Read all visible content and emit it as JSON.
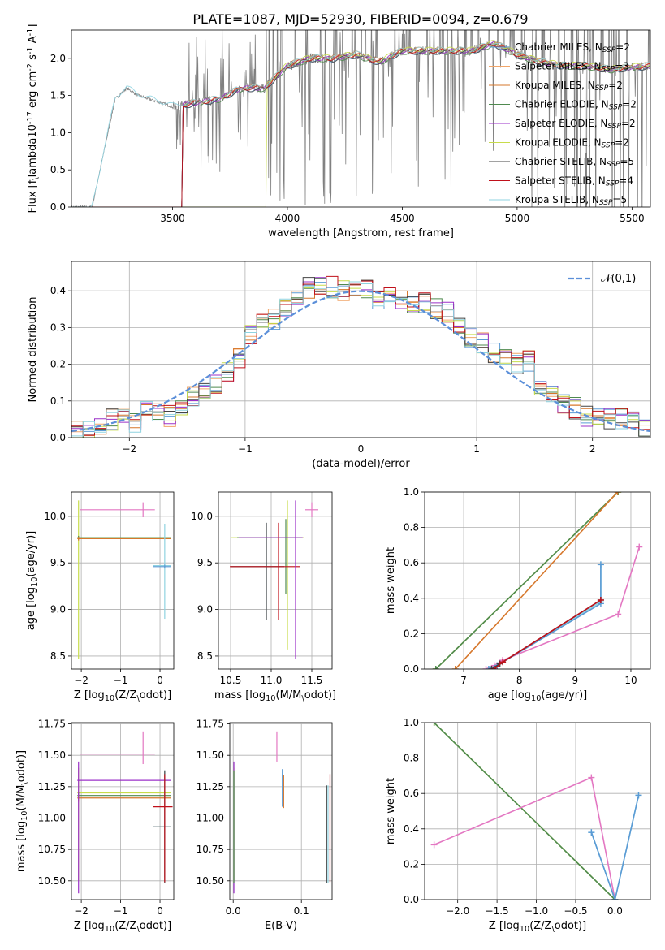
{
  "figure_title": "PLATE=1087, MJD=52930, FIBERID=0094, z=0.679",
  "legend_series": [
    {
      "name": "Chabrier MILES, N$_{SSP}$=2",
      "base": "Chabrier MILES, N",
      "sub": "SSP",
      "tail": "=2",
      "color": "#5b9bd5"
    },
    {
      "name": "Salpeter MILES, N$_{SSP}$=3",
      "base": "Salpeter MILES, N",
      "sub": "SSP",
      "tail": "=3",
      "color": "#f1a66a"
    },
    {
      "name": "Kroupa MILES, N$_{SSP}$=2",
      "base": "Kroupa MILES, N",
      "sub": "SSP",
      "tail": "=2",
      "color": "#d6772b"
    },
    {
      "name": "Chabrier ELODIE, N$_{SSP}$=2",
      "base": "Chabrier ELODIE, N",
      "sub": "SSP",
      "tail": "=2",
      "color": "#4f8a4f"
    },
    {
      "name": "Salpeter ELODIE, N$_{SSP}$=2",
      "base": "Salpeter ELODIE, N",
      "sub": "SSP",
      "tail": "=2",
      "color": "#9b30c8"
    },
    {
      "name": "Kroupa ELODIE, N$_{SSP}$=2",
      "base": "Kroupa ELODIE, N",
      "sub": "SSP",
      "tail": "=2",
      "color": "#c8dc4b"
    },
    {
      "name": "Chabrier STELIB, N$_{SSP}$=5",
      "base": "Chabrier STELIB, N",
      "sub": "SSP",
      "tail": "=5",
      "color": "#444444"
    },
    {
      "name": "Salpeter STELIB, N$_{SSP}$=4",
      "base": "Salpeter STELIB, N",
      "sub": "SSP",
      "tail": "=4",
      "color": "#c0101a"
    },
    {
      "name": "Kroupa STELIB, N$_{SSP}$=5",
      "base": "Kroupa STELIB, N",
      "sub": "SSP",
      "tail": "=5",
      "color": "#8fd3e0"
    }
  ],
  "chart_data": [
    {
      "id": "spectrum",
      "type": "line",
      "xlabel": "wavelength [Angstrom, rest frame]",
      "ylabel": "Flux [f$_\\lambda$10$^{-17}$ erg cm$^{-2}$ s$^{-1}$ A$^{-1}$]",
      "xlim": [
        3060,
        5580
      ],
      "ylim": [
        0,
        2.38
      ],
      "xticks": [
        3500,
        4000,
        4500,
        5000,
        5500
      ],
      "yticks": [
        0.0,
        0.5,
        1.0,
        1.5,
        2.0
      ],
      "grid": false,
      "legend": "right",
      "data_series": {
        "name": "data",
        "color": "#808080",
        "x": [
          3060,
          3150,
          3250,
          3300,
          3350,
          3400,
          3500,
          3600,
          3700,
          3800,
          3900,
          4000,
          4100,
          4200,
          4300,
          4400,
          4500,
          4600,
          4700,
          4800,
          4900,
          5000,
          5100,
          5200,
          5300,
          5400,
          5580
        ],
        "y": [
          0,
          0,
          1.45,
          1.6,
          1.5,
          1.45,
          1.35,
          1.4,
          1.45,
          1.6,
          1.6,
          1.9,
          2.0,
          2.0,
          2.05,
          1.95,
          2.1,
          2.1,
          2.1,
          2.1,
          2.2,
          2.05,
          1.95,
          1.9,
          1.9,
          1.85,
          1.9
        ]
      },
      "model_series": {
        "x": [
          3060,
          3150,
          3250,
          3300,
          3350,
          3400,
          3500,
          3600,
          3700,
          3800,
          3900,
          4000,
          4100,
          4200,
          4300,
          4400,
          4500,
          4600,
          4700,
          4800,
          4900,
          5000,
          5100,
          5200,
          5300,
          5400,
          5580
        ],
        "y": [
          0,
          0,
          1.45,
          1.6,
          1.5,
          1.45,
          1.35,
          1.4,
          1.45,
          1.6,
          1.6,
          1.9,
          2.0,
          2.0,
          2.05,
          1.95,
          2.1,
          2.1,
          2.1,
          2.1,
          2.2,
          2.05,
          1.95,
          1.9,
          1.9,
          1.85,
          1.9
        ]
      },
      "model_start_x": [
        3545,
        3545,
        3545,
        3545,
        3545,
        3910,
        3545,
        3545,
        3150
      ]
    },
    {
      "id": "residuals",
      "type": "line",
      "xlabel": "(data-model)/error",
      "ylabel": "Normed distribution",
      "xlim": [
        -2.5,
        2.5
      ],
      "ylim": [
        0,
        0.48
      ],
      "xticks": [
        -2,
        -1,
        0,
        1,
        2
      ],
      "yticks": [
        0.0,
        0.1,
        0.2,
        0.3,
        0.4
      ],
      "grid": true,
      "legend": "top-right",
      "normal_label": "$\\mathcal{N}(0,1)$",
      "normal_color": "#5b8fd9",
      "bin_edges": [
        -2.5,
        -2.4,
        -2.3,
        -2.2,
        -2.1,
        -2.0,
        -1.9,
        -1.8,
        -1.7,
        -1.6,
        -1.5,
        -1.4,
        -1.3,
        -1.2,
        -1.1,
        -1.0,
        -0.9,
        -0.8,
        -0.7,
        -0.6,
        -0.5,
        -0.4,
        -0.3,
        -0.2,
        -0.1,
        0.0,
        0.1,
        0.2,
        0.3,
        0.4,
        0.5,
        0.6,
        0.7,
        0.8,
        0.9,
        1.0,
        1.1,
        1.2,
        1.3,
        1.4,
        1.5,
        1.6,
        1.7,
        1.8,
        1.9,
        2.0,
        2.1,
        2.2,
        2.3,
        2.4,
        2.5
      ],
      "hist_base": [
        0.02,
        0.02,
        0.03,
        0.05,
        0.05,
        0.04,
        0.07,
        0.07,
        0.06,
        0.08,
        0.11,
        0.13,
        0.15,
        0.18,
        0.22,
        0.28,
        0.31,
        0.32,
        0.35,
        0.38,
        0.41,
        0.42,
        0.41,
        0.4,
        0.4,
        0.41,
        0.38,
        0.39,
        0.37,
        0.37,
        0.37,
        0.35,
        0.34,
        0.3,
        0.27,
        0.26,
        0.23,
        0.21,
        0.2,
        0.21,
        0.14,
        0.12,
        0.09,
        0.08,
        0.06,
        0.06,
        0.05,
        0.05,
        0.04,
        0.03
      ]
    },
    {
      "id": "age-vs-Z",
      "type": "scatter",
      "xlabel": "Z [log$_{10}$($Z/Z_\\odot$)]",
      "ylabel": "age  [log$_{10}$($age/yr$)]",
      "xlim": [
        -2.25,
        0.35
      ],
      "ylim": [
        8.36,
        10.26
      ],
      "xticks": [
        -2,
        -1,
        0
      ],
      "yticks": [
        8.5,
        9.0,
        9.5,
        10.0
      ],
      "grid": true,
      "points": [
        {
          "x": -2.07,
          "y": 9.77,
          "xerr": [
            0.03,
            2.35
          ],
          "yerr": [
            1.3,
            0.4
          ],
          "color": "#c8dc4b"
        },
        {
          "x": -2.07,
          "y": 9.77,
          "xerr": [
            0.03,
            2.35
          ],
          "yerr": [
            0.02,
            0.02
          ],
          "color": "#4f8a4f"
        },
        {
          "x": -2.07,
          "y": 9.76,
          "xerr": [
            0.03,
            2.35
          ],
          "yerr": [
            0.02,
            0.02
          ],
          "color": "#d6772b"
        },
        {
          "x": -0.43,
          "y": 10.07,
          "xerr": [
            1.6,
            0.3
          ],
          "yerr": [
            0.08,
            0.08
          ],
          "color": "#e377c2"
        },
        {
          "x": 0.12,
          "y": 9.47,
          "xerr": [
            0.3,
            0.16
          ],
          "yerr": [
            0.57,
            0.45
          ],
          "color": "#8fd3e0"
        },
        {
          "x": 0.12,
          "y": 9.46,
          "xerr": [
            0.3,
            0.16
          ],
          "yerr": [
            0.02,
            0.02
          ],
          "color": "#5b9bd5"
        }
      ]
    },
    {
      "id": "age-vs-mass",
      "type": "scatter",
      "xlabel": "mass [log$_{10}$($M/M_\\odot$)]",
      "ylabel": "",
      "xlim": [
        10.35,
        11.75
      ],
      "ylim": [
        8.36,
        10.26
      ],
      "xticks": [
        10.5,
        11.0,
        11.5
      ],
      "yticks": [
        8.5,
        9.0,
        9.5,
        10.0
      ],
      "grid": true,
      "points": [
        {
          "x": 11.2,
          "y": 9.77,
          "xerr": [
            0.7,
            0.2
          ],
          "yerr": [
            1.2,
            0.4
          ],
          "color": "#c8dc4b"
        },
        {
          "x": 11.18,
          "y": 9.77,
          "xerr": [
            0.6,
            0.2
          ],
          "yerr": [
            0.6,
            0.2
          ],
          "color": "#4f8a4f"
        },
        {
          "x": 10.94,
          "y": 9.46,
          "xerr": [
            0.44,
            0.22
          ],
          "yerr": [
            0.57,
            0.47
          ],
          "color": "#8fd3e0"
        },
        {
          "x": 10.94,
          "y": 9.46,
          "xerr": [
            0.44,
            0.22
          ],
          "yerr": [
            0.57,
            0.47
          ],
          "color": "#444444"
        },
        {
          "x": 11.09,
          "y": 9.46,
          "xerr": [
            0.6,
            0.27
          ],
          "yerr": [
            0.57,
            0.47
          ],
          "color": "#c0101a"
        },
        {
          "x": 11.3,
          "y": 9.77,
          "xerr": [
            0.7,
            0.09
          ],
          "yerr": [
            1.3,
            0.4
          ],
          "color": "#9b30c8"
        },
        {
          "x": 11.5,
          "y": 10.07,
          "xerr": [
            0.08,
            0.08
          ],
          "yerr": [
            0.08,
            0.08
          ],
          "color": "#e377c2"
        }
      ]
    },
    {
      "id": "massweight-vs-age",
      "type": "line",
      "xlabel": "age  [log$_{10}$($age/yr$)]",
      "ylabel": "mass weight",
      "xlim": [
        6.3,
        10.35
      ],
      "ylim": [
        0,
        1
      ],
      "xticks": [
        7,
        8,
        9,
        10
      ],
      "yticks": [
        0.0,
        0.2,
        0.4,
        0.6,
        0.8,
        1.0
      ],
      "grid": true,
      "series": [
        {
          "x": [
            6.5,
            9.77
          ],
          "y": [
            0.0,
            1.0
          ],
          "color": "#c8dc4b"
        },
        {
          "x": [
            6.5,
            9.77
          ],
          "y": [
            0.0,
            1.0
          ],
          "color": "#4f8a4f"
        },
        {
          "x": [
            6.85,
            9.76
          ],
          "y": [
            0.0,
            1.0
          ],
          "color": "#d6772b"
        },
        {
          "x": [
            7.4,
            7.55,
            7.7,
            9.77,
            10.15
          ],
          "y": [
            0.0,
            0.02,
            0.05,
            0.31,
            0.69
          ],
          "color": "#e377c2"
        },
        {
          "x": [
            7.45,
            7.6,
            9.46,
            9.46
          ],
          "y": [
            0.0,
            0.02,
            0.38,
            0.59
          ],
          "color": "#8fd3e0"
        },
        {
          "x": [
            7.45,
            7.6,
            9.46,
            9.46
          ],
          "y": [
            0.0,
            0.02,
            0.37,
            0.59
          ],
          "color": "#5b9bd5"
        },
        {
          "x": [
            7.5,
            7.65,
            9.46
          ],
          "y": [
            0.0,
            0.03,
            0.39
          ],
          "color": "#444444"
        },
        {
          "x": [
            7.55,
            7.7,
            9.46
          ],
          "y": [
            0.0,
            0.04,
            0.39
          ],
          "color": "#c0101a"
        }
      ]
    },
    {
      "id": "mass-vs-Z",
      "type": "scatter",
      "xlabel": "Z [log$_{10}$($Z/Z_\\odot$)]",
      "ylabel": "mass [log$_{10}$($M/M_\\odot$)]",
      "xlim": [
        -2.25,
        0.35
      ],
      "ylim": [
        10.35,
        11.76
      ],
      "xticks": [
        -2,
        -1,
        0
      ],
      "yticks": [
        10.5,
        10.75,
        11.0,
        11.25,
        11.5,
        11.75
      ],
      "grid": true,
      "points": [
        {
          "x": -2.07,
          "y": 11.2,
          "xerr": [
            0.03,
            2.35
          ],
          "yerr": [
            0.7,
            0.2
          ],
          "color": "#c8dc4b"
        },
        {
          "x": -2.07,
          "y": 11.18,
          "xerr": [
            0.03,
            2.35
          ],
          "yerr": [
            0.03,
            0.03
          ],
          "color": "#4f8a4f"
        },
        {
          "x": -2.07,
          "y": 11.16,
          "xerr": [
            0.03,
            2.35
          ],
          "yerr": [
            0.03,
            0.03
          ],
          "color": "#d6772b"
        },
        {
          "x": -2.07,
          "y": 11.3,
          "xerr": [
            0.03,
            2.35
          ],
          "yerr": [
            0.9,
            0.15
          ],
          "color": "#9b30c8"
        },
        {
          "x": -0.43,
          "y": 11.51,
          "xerr": [
            1.6,
            0.3
          ],
          "yerr": [
            0.08,
            0.18
          ],
          "color": "#e377c2"
        },
        {
          "x": 0.12,
          "y": 10.93,
          "xerr": [
            0.3,
            0.16
          ],
          "yerr": [
            0.4,
            0.45
          ],
          "color": "#8fd3e0"
        },
        {
          "x": 0.12,
          "y": 10.93,
          "xerr": [
            0.3,
            0.16
          ],
          "yerr": [
            0.45,
            0.45
          ],
          "color": "#444444"
        },
        {
          "x": 0.12,
          "y": 11.09,
          "xerr": [
            0.3,
            0.2
          ],
          "yerr": [
            0.6,
            0.26
          ],
          "color": "#c0101a"
        }
      ]
    },
    {
      "id": "mass-vs-ebv",
      "type": "scatter",
      "xlabel": "E(B-V)",
      "ylabel": "",
      "xlim": [
        -0.005,
        0.145
      ],
      "ylim": [
        10.35,
        11.76
      ],
      "xticks": [
        0.0,
        0.1
      ],
      "yticks": [
        10.5,
        10.75,
        11.0,
        11.25,
        11.5,
        11.75
      ],
      "grid": true,
      "points": [
        {
          "x": 0.001,
          "y": 11.2,
          "xerr": [
            0,
            0
          ],
          "yerr": [
            0.7,
            0.2
          ],
          "color": "#c8dc4b"
        },
        {
          "x": 0.001,
          "y": 11.3,
          "xerr": [
            0,
            0
          ],
          "yerr": [
            0.9,
            0.15
          ],
          "color": "#9b30c8"
        },
        {
          "x": 0.001,
          "y": 11.18,
          "xerr": [
            0,
            0
          ],
          "yerr": [
            0.7,
            0.2
          ],
          "color": "#4f8a4f"
        },
        {
          "x": 0.064,
          "y": 11.57,
          "xerr": [
            0,
            0
          ],
          "yerr": [
            0.12,
            0.12
          ],
          "color": "#e377c2"
        },
        {
          "x": 0.072,
          "y": 11.24,
          "xerr": [
            0,
            0
          ],
          "yerr": [
            0.15,
            0.15
          ],
          "color": "#5b9bd5"
        },
        {
          "x": 0.074,
          "y": 11.21,
          "xerr": [
            0,
            0
          ],
          "yerr": [
            0.13,
            0.13
          ],
          "color": "#d6772b"
        },
        {
          "x": 0.137,
          "y": 10.93,
          "xerr": [
            0,
            0
          ],
          "yerr": [
            0.45,
            0.33
          ],
          "color": "#444444"
        },
        {
          "x": 0.139,
          "y": 10.93,
          "xerr": [
            0,
            0
          ],
          "yerr": [
            0.45,
            0.33
          ],
          "color": "#8fd3e0"
        },
        {
          "x": 0.142,
          "y": 11.09,
          "xerr": [
            0,
            0
          ],
          "yerr": [
            0.6,
            0.26
          ],
          "color": "#c0101a"
        }
      ]
    },
    {
      "id": "massweight-vs-Z",
      "type": "line",
      "xlabel": "Z [log$_{10}$($Z/Z_\\odot$)]",
      "ylabel": "mass weight",
      "xlim": [
        -2.42,
        0.45
      ],
      "ylim": [
        0,
        1
      ],
      "xticks": [
        -2.0,
        -1.5,
        -1.0,
        -0.5,
        0.0
      ],
      "yticks": [
        0.0,
        0.2,
        0.4,
        0.6,
        0.8,
        1.0
      ],
      "grid": true,
      "series": [
        {
          "x": [
            -2.3,
            0.0
          ],
          "y": [
            1.0,
            0.0
          ],
          "color": "#c8dc4b"
        },
        {
          "x": [
            -2.3,
            0.0
          ],
          "y": [
            1.0,
            0.0
          ],
          "color": "#4f8a4f"
        },
        {
          "x": [
            -2.3,
            -0.3,
            0.0
          ],
          "y": [
            0.31,
            0.69,
            0.0
          ],
          "color": "#e377c2"
        },
        {
          "x": [
            -0.3,
            0.0,
            0.3
          ],
          "y": [
            0.38,
            0.0,
            0.59
          ],
          "color": "#8fd3e0"
        },
        {
          "x": [
            -0.3,
            0.0,
            0.3
          ],
          "y": [
            0.38,
            0.0,
            0.59
          ],
          "color": "#5b9bd5"
        }
      ]
    }
  ]
}
